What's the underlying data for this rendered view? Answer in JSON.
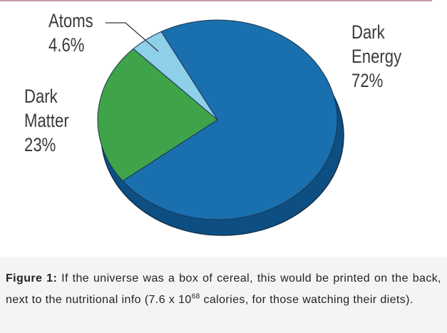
{
  "chart_data": {
    "type": "pie",
    "categories": [
      "Dark Energy",
      "Dark Matter",
      "Atoms"
    ],
    "values": [
      72,
      23,
      4.6
    ],
    "value_labels": [
      "72%",
      "23%",
      "4.6%"
    ],
    "colors": [
      "#1a6fae",
      "#3fa34a",
      "#8ecfe9"
    ]
  },
  "caption": {
    "label": "Figure 1:",
    "text": "If the universe was a box of cereal, this would be printed on the back, next to the nutritional info (7.6 x 10",
    "sup": "68",
    "text_after": "calories, for those watching their diets)."
  }
}
